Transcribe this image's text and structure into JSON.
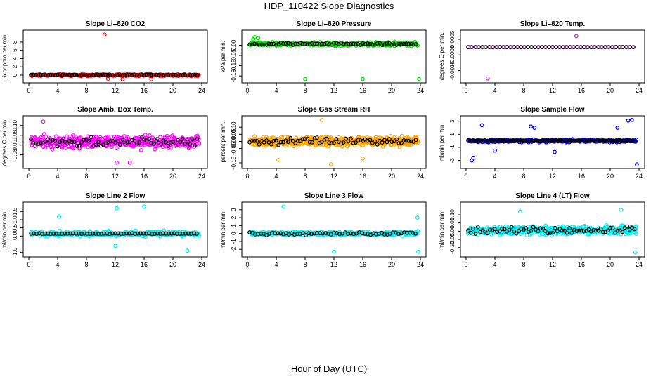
{
  "title": "HDP_110422  Slope Diagnostics",
  "x_axis_label": "Hour of Day (UTC)",
  "chart_data": [
    {
      "type": "scatter",
      "title": "Slope Li–820 CO2",
      "ylabel": "Licor ppm per min.",
      "color": "#ff0000",
      "xlim": [
        0,
        24
      ],
      "ylim": [
        -1.2,
        10.2
      ],
      "xticks": [
        {
          "v": 0,
          "label": "0"
        },
        {
          "v": 4,
          "label": "4"
        },
        {
          "v": 8,
          "label": "8"
        },
        {
          "v": 12,
          "label": "12"
        },
        {
          "v": 16,
          "label": "16"
        },
        {
          "v": 20,
          "label": "20"
        },
        {
          "v": 24,
          "label": "24"
        }
      ],
      "yticks": [
        {
          "v": 0,
          "label": "0"
        },
        {
          "v": 2,
          "label": "2"
        },
        {
          "v": 4,
          "label": "4"
        },
        {
          "v": 6,
          "label": "6"
        },
        {
          "v": 8,
          "label": "8"
        }
      ],
      "noise": {
        "center": 0,
        "spread": 0.35,
        "black_spread": 0.15,
        "n_color": 240,
        "n_black": 70
      },
      "outliers": [
        [
          10.5,
          9.8
        ],
        [
          11.0,
          -0.9
        ],
        [
          13.0,
          -1.0
        ],
        [
          17.0,
          -1.0
        ]
      ]
    },
    {
      "type": "scatter",
      "title": "Slope Li–820 Pressure",
      "ylabel": "kPa per min.",
      "color": "#00dd00",
      "xlim": [
        0,
        24
      ],
      "ylim": [
        -0.17,
        0.06
      ],
      "xticks": [
        {
          "v": 0,
          "label": "0"
        },
        {
          "v": 4,
          "label": "4"
        },
        {
          "v": 8,
          "label": "8"
        },
        {
          "v": 12,
          "label": "12"
        },
        {
          "v": 16,
          "label": "16"
        },
        {
          "v": 20,
          "label": "20"
        },
        {
          "v": 24,
          "label": "24"
        }
      ],
      "yticks": [
        {
          "v": 0,
          "label": "0.00"
        },
        {
          "v": -0.05,
          "label": "-0.05"
        },
        {
          "v": -0.1,
          "label": "-0.10"
        },
        {
          "v": -0.15,
          "label": "-0.15"
        }
      ],
      "noise": {
        "center": 0.006,
        "spread": 0.012,
        "black_spread": 0.008,
        "n_color": 300,
        "n_black": 70
      },
      "outliers": [
        [
          0.8,
          0.03
        ],
        [
          1.0,
          0.04
        ],
        [
          1.5,
          0.035
        ],
        [
          8.0,
          -0.165
        ],
        [
          16.0,
          -0.165
        ],
        [
          23.8,
          -0.165
        ]
      ]
    },
    {
      "type": "scatter",
      "title": "Slope Li–820 Temp.",
      "ylabel": "degrees C per min.",
      "color": "#ff00ff",
      "xlim": [
        0,
        24
      ],
      "ylim": [
        -0.0021,
        0.0009
      ],
      "xticks": [
        {
          "v": 0,
          "label": "0"
        },
        {
          "v": 4,
          "label": "4"
        },
        {
          "v": 8,
          "label": "8"
        },
        {
          "v": 12,
          "label": "12"
        },
        {
          "v": 16,
          "label": "16"
        },
        {
          "v": 20,
          "label": "20"
        },
        {
          "v": 24,
          "label": "24"
        }
      ],
      "yticks": [
        {
          "v": 0.0005,
          "label": "0.0005"
        },
        {
          "v": -0.0005,
          "label": "-0.0005"
        },
        {
          "v": -0.0015,
          "label": "-0.0015"
        }
      ],
      "noise": {
        "center": 0,
        "spread": 1e-05,
        "black_spread": 1e-05,
        "n_color": 48,
        "n_black": 48
      },
      "outliers": [
        [
          15.3,
          0.0007
        ],
        [
          3.0,
          -0.002
        ]
      ]
    },
    {
      "type": "scatter",
      "title": "Slope Amb. Box Temp.",
      "ylabel": "degrees C per min.",
      "color": "#ff00ff",
      "xlim": [
        0,
        24
      ],
      "ylim": [
        -0.105,
        0.135
      ],
      "xticks": [
        {
          "v": 0,
          "label": "0"
        },
        {
          "v": 4,
          "label": "4"
        },
        {
          "v": 8,
          "label": "8"
        },
        {
          "v": 12,
          "label": "12"
        },
        {
          "v": 16,
          "label": "16"
        },
        {
          "v": 20,
          "label": "20"
        },
        {
          "v": 24,
          "label": "24"
        }
      ],
      "yticks": [
        {
          "v": -0.05,
          "label": "-0.05"
        },
        {
          "v": 0,
          "label": "0.00"
        },
        {
          "v": 0.05,
          "label": "0.05"
        },
        {
          "v": 0.1,
          "label": "0.10"
        }
      ],
      "noise": {
        "center": 0.015,
        "spread": 0.045,
        "black_spread": 0.035,
        "n_color": 420,
        "n_black": 70
      },
      "outliers": [
        [
          2.0,
          0.12
        ],
        [
          12.2,
          -0.09
        ],
        [
          14.0,
          -0.09
        ]
      ]
    },
    {
      "type": "scatter",
      "title": "Slope Gas Stream RH",
      "ylabel": "percent per min.",
      "color": "#ffa500",
      "xlim": [
        0,
        24
      ],
      "ylim": [
        -0.17,
        0.16
      ],
      "xticks": [
        {
          "v": 0,
          "label": "0"
        },
        {
          "v": 4,
          "label": "4"
        },
        {
          "v": 8,
          "label": "8"
        },
        {
          "v": 12,
          "label": "12"
        },
        {
          "v": 16,
          "label": "16"
        },
        {
          "v": 20,
          "label": "20"
        },
        {
          "v": 24,
          "label": "24"
        }
      ],
      "yticks": [
        {
          "v": -0.15,
          "label": "-0.15"
        },
        {
          "v": -0.05,
          "label": "-0.05"
        },
        {
          "v": 0,
          "label": "0.00"
        },
        {
          "v": 0.05,
          "label": "0.05"
        },
        {
          "v": 0.1,
          "label": "0.10"
        }
      ],
      "noise": {
        "center": 0,
        "spread": 0.045,
        "black_spread": 0.03,
        "n_color": 600,
        "n_black": 70
      },
      "outliers": [
        [
          10.3,
          0.15
        ],
        [
          11.6,
          -0.16
        ],
        [
          4.3,
          -0.13
        ],
        [
          16.0,
          -0.12
        ]
      ]
    },
    {
      "type": "scatter",
      "title": "Slope Sample Flow",
      "ylabel": "ml/min per min.",
      "color": "#0000ff",
      "xlim": [
        0,
        24
      ],
      "ylim": [
        -3.8,
        3.4
      ],
      "xticks": [
        {
          "v": 0,
          "label": "0"
        },
        {
          "v": 4,
          "label": "4"
        },
        {
          "v": 8,
          "label": "8"
        },
        {
          "v": 12,
          "label": "12"
        },
        {
          "v": 16,
          "label": "16"
        },
        {
          "v": 20,
          "label": "20"
        },
        {
          "v": 24,
          "label": "24"
        }
      ],
      "yticks": [
        {
          "v": -3,
          "label": "-3"
        },
        {
          "v": -1,
          "label": "-1"
        },
        {
          "v": 1,
          "label": "1"
        },
        {
          "v": 3,
          "label": "3"
        }
      ],
      "noise": {
        "center": 0,
        "spread": 0.3,
        "black_spread": 0.15,
        "n_color": 380,
        "n_black": 80
      },
      "outliers": [
        [
          2.2,
          2.4
        ],
        [
          1.0,
          -2.6
        ],
        [
          0.8,
          -3.0
        ],
        [
          9.0,
          2.2
        ],
        [
          9.5,
          2.0
        ],
        [
          4.0,
          -1.5
        ],
        [
          22.5,
          3.1
        ],
        [
          23.0,
          3.2
        ],
        [
          23.7,
          -3.6
        ],
        [
          21.0,
          2.0
        ],
        [
          12.3,
          -1.7
        ]
      ]
    },
    {
      "type": "scatter",
      "title": "Slope Line 2 Flow",
      "ylabel": "ml/min per min.",
      "color": "#00eeee",
      "xlim": [
        0,
        24
      ],
      "ylim": [
        -1.1,
        1.9
      ],
      "xticks": [
        {
          "v": 0,
          "label": "0"
        },
        {
          "v": 4,
          "label": "4"
        },
        {
          "v": 8,
          "label": "8"
        },
        {
          "v": 12,
          "label": "12"
        },
        {
          "v": 16,
          "label": "16"
        },
        {
          "v": 20,
          "label": "20"
        },
        {
          "v": 24,
          "label": "24"
        }
      ],
      "yticks": [
        {
          "v": -1,
          "label": "-1.0"
        },
        {
          "v": 0,
          "label": "0.0"
        },
        {
          "v": 0.5,
          "label": "0.5"
        },
        {
          "v": 1,
          "label": "1.0"
        },
        {
          "v": 1.5,
          "label": "1.5"
        }
      ],
      "noise": {
        "center": 0.15,
        "spread": 0.22,
        "black_spread": 0.03,
        "n_color": 320,
        "n_black": 60
      },
      "outliers": [
        [
          12.2,
          1.7
        ],
        [
          16.0,
          1.8
        ],
        [
          4.2,
          1.2
        ],
        [
          22.0,
          -0.9
        ],
        [
          12.0,
          -0.6
        ]
      ]
    },
    {
      "type": "scatter",
      "title": "Slope Line 3 Flow",
      "ylabel": "ml/min per min.",
      "color": "#00eeee",
      "xlim": [
        0,
        24
      ],
      "ylim": [
        -2.6,
        3.6
      ],
      "xticks": [
        {
          "v": 0,
          "label": "0"
        },
        {
          "v": 4,
          "label": "4"
        },
        {
          "v": 8,
          "label": "8"
        },
        {
          "v": 12,
          "label": "12"
        },
        {
          "v": 16,
          "label": "16"
        },
        {
          "v": 20,
          "label": "20"
        },
        {
          "v": 24,
          "label": "24"
        }
      ],
      "yticks": [
        {
          "v": -2,
          "label": "-2"
        },
        {
          "v": -1,
          "label": "-1"
        },
        {
          "v": 0,
          "label": "0"
        },
        {
          "v": 1,
          "label": "1"
        },
        {
          "v": 2,
          "label": "2"
        },
        {
          "v": 3,
          "label": "3"
        }
      ],
      "noise": {
        "center": 0,
        "spread": 0.35,
        "black_spread": 0.25,
        "n_color": 320,
        "n_black": 60
      },
      "outliers": [
        [
          5.0,
          3.4
        ],
        [
          12.0,
          -2.3
        ],
        [
          23.7,
          -2.3
        ],
        [
          23.6,
          2.0
        ]
      ]
    },
    {
      "type": "scatter",
      "title": "Slope Line 4 (LT) Flow",
      "ylabel": "ml/min per min.",
      "color": "#00eeee",
      "xlim": [
        0,
        24
      ],
      "ylim": [
        -0.14,
        0.16
      ],
      "xticks": [
        {
          "v": 0,
          "label": "0"
        },
        {
          "v": 4,
          "label": "4"
        },
        {
          "v": 8,
          "label": "8"
        },
        {
          "v": 12,
          "label": "12"
        },
        {
          "v": 16,
          "label": "16"
        },
        {
          "v": 20,
          "label": "20"
        },
        {
          "v": 24,
          "label": "24"
        }
      ],
      "yticks": [
        {
          "v": -0.1,
          "label": "-0.10"
        },
        {
          "v": -0.05,
          "label": "-0.05"
        },
        {
          "v": 0,
          "label": "0.00"
        },
        {
          "v": 0.05,
          "label": "0.05"
        },
        {
          "v": 0.1,
          "label": "0.10"
        }
      ],
      "noise": {
        "center": 0.005,
        "spread": 0.035,
        "black_spread": 0.03,
        "n_color": 480,
        "n_black": 70
      },
      "outliers": [
        [
          21.5,
          0.13
        ],
        [
          7.5,
          0.12
        ],
        [
          23.5,
          -0.13
        ]
      ]
    }
  ]
}
